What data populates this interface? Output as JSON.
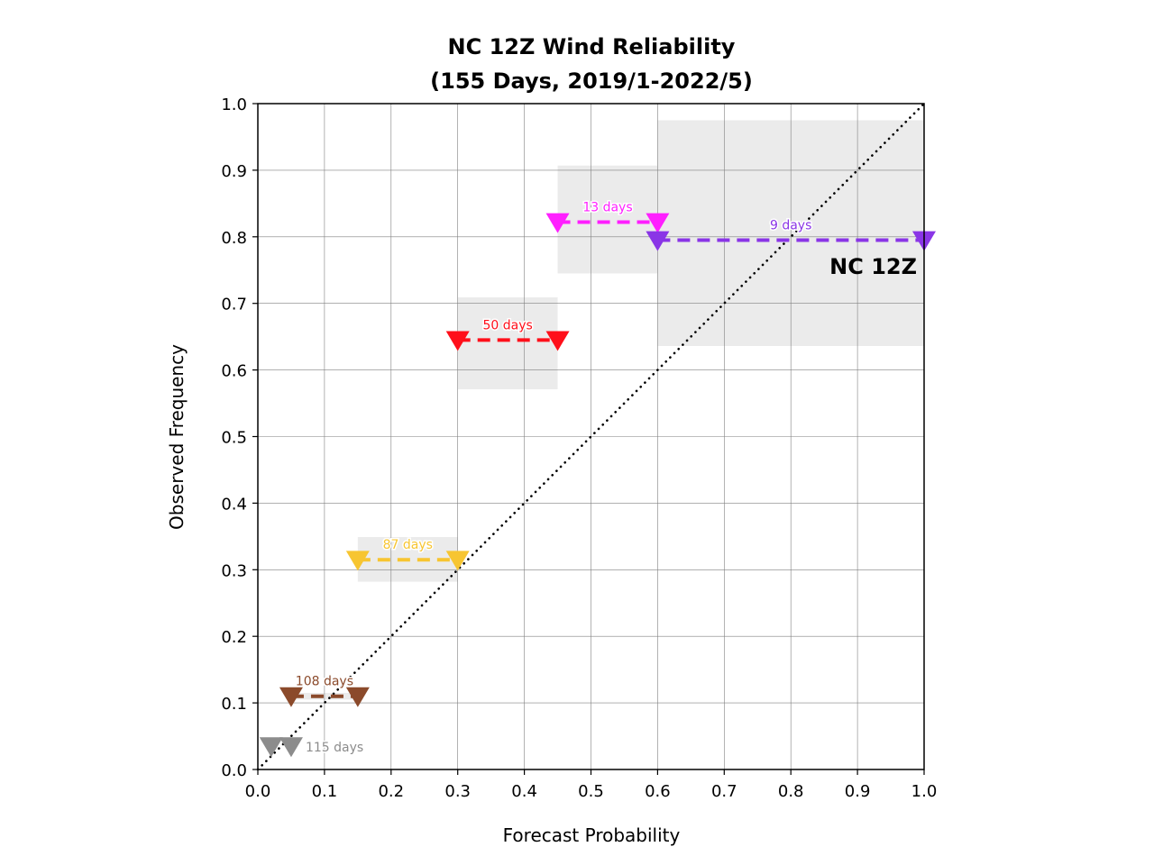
{
  "chart_data": {
    "type": "scatter",
    "title_line1": "NC 12Z Wind Reliability",
    "title_line2": "(155 Days, 2019/1-2022/5)",
    "xlabel": "Forecast Probability",
    "ylabel": "Observed Frequency",
    "xlim": [
      0.0,
      1.0
    ],
    "ylim": [
      0.0,
      1.0
    ],
    "xticks": [
      "0.0",
      "0.1",
      "0.2",
      "0.3",
      "0.4",
      "0.5",
      "0.6",
      "0.7",
      "0.8",
      "0.9",
      "1.0"
    ],
    "yticks": [
      "0.0",
      "0.1",
      "0.2",
      "0.3",
      "0.4",
      "0.5",
      "0.6",
      "0.7",
      "0.8",
      "0.9",
      "1.0"
    ],
    "grid": true,
    "diagonal": "dotted",
    "model_label": "NC 12Z",
    "bins": [
      {
        "x_low": 0.02,
        "x_high": 0.05,
        "y": 0.035,
        "label": "115 days",
        "color": "#8c8c8c",
        "ci_low": null,
        "ci_high": null
      },
      {
        "x_low": 0.05,
        "x_high": 0.15,
        "y": 0.11,
        "label": "108 days",
        "color": "#8b4a2b",
        "ci_low": 0.105,
        "ci_high": 0.115
      },
      {
        "x_low": 0.15,
        "x_high": 0.3,
        "y": 0.315,
        "label": "87 days",
        "color": "#f7c531",
        "ci_low": 0.282,
        "ci_high": 0.349
      },
      {
        "x_low": 0.3,
        "x_high": 0.45,
        "y": 0.645,
        "label": "50 days",
        "color": "#ff0f1a",
        "ci_low": 0.571,
        "ci_high": 0.709
      },
      {
        "x_low": 0.45,
        "x_high": 0.6,
        "y": 0.822,
        "label": "13 days",
        "color": "#ff1fff",
        "ci_low": 0.745,
        "ci_high": 0.907
      },
      {
        "x_low": 0.6,
        "x_high": 1.0,
        "y": 0.795,
        "label": "9 days",
        "color": "#8a35e6",
        "ci_low": 0.636,
        "ci_high": 0.975
      }
    ]
  }
}
